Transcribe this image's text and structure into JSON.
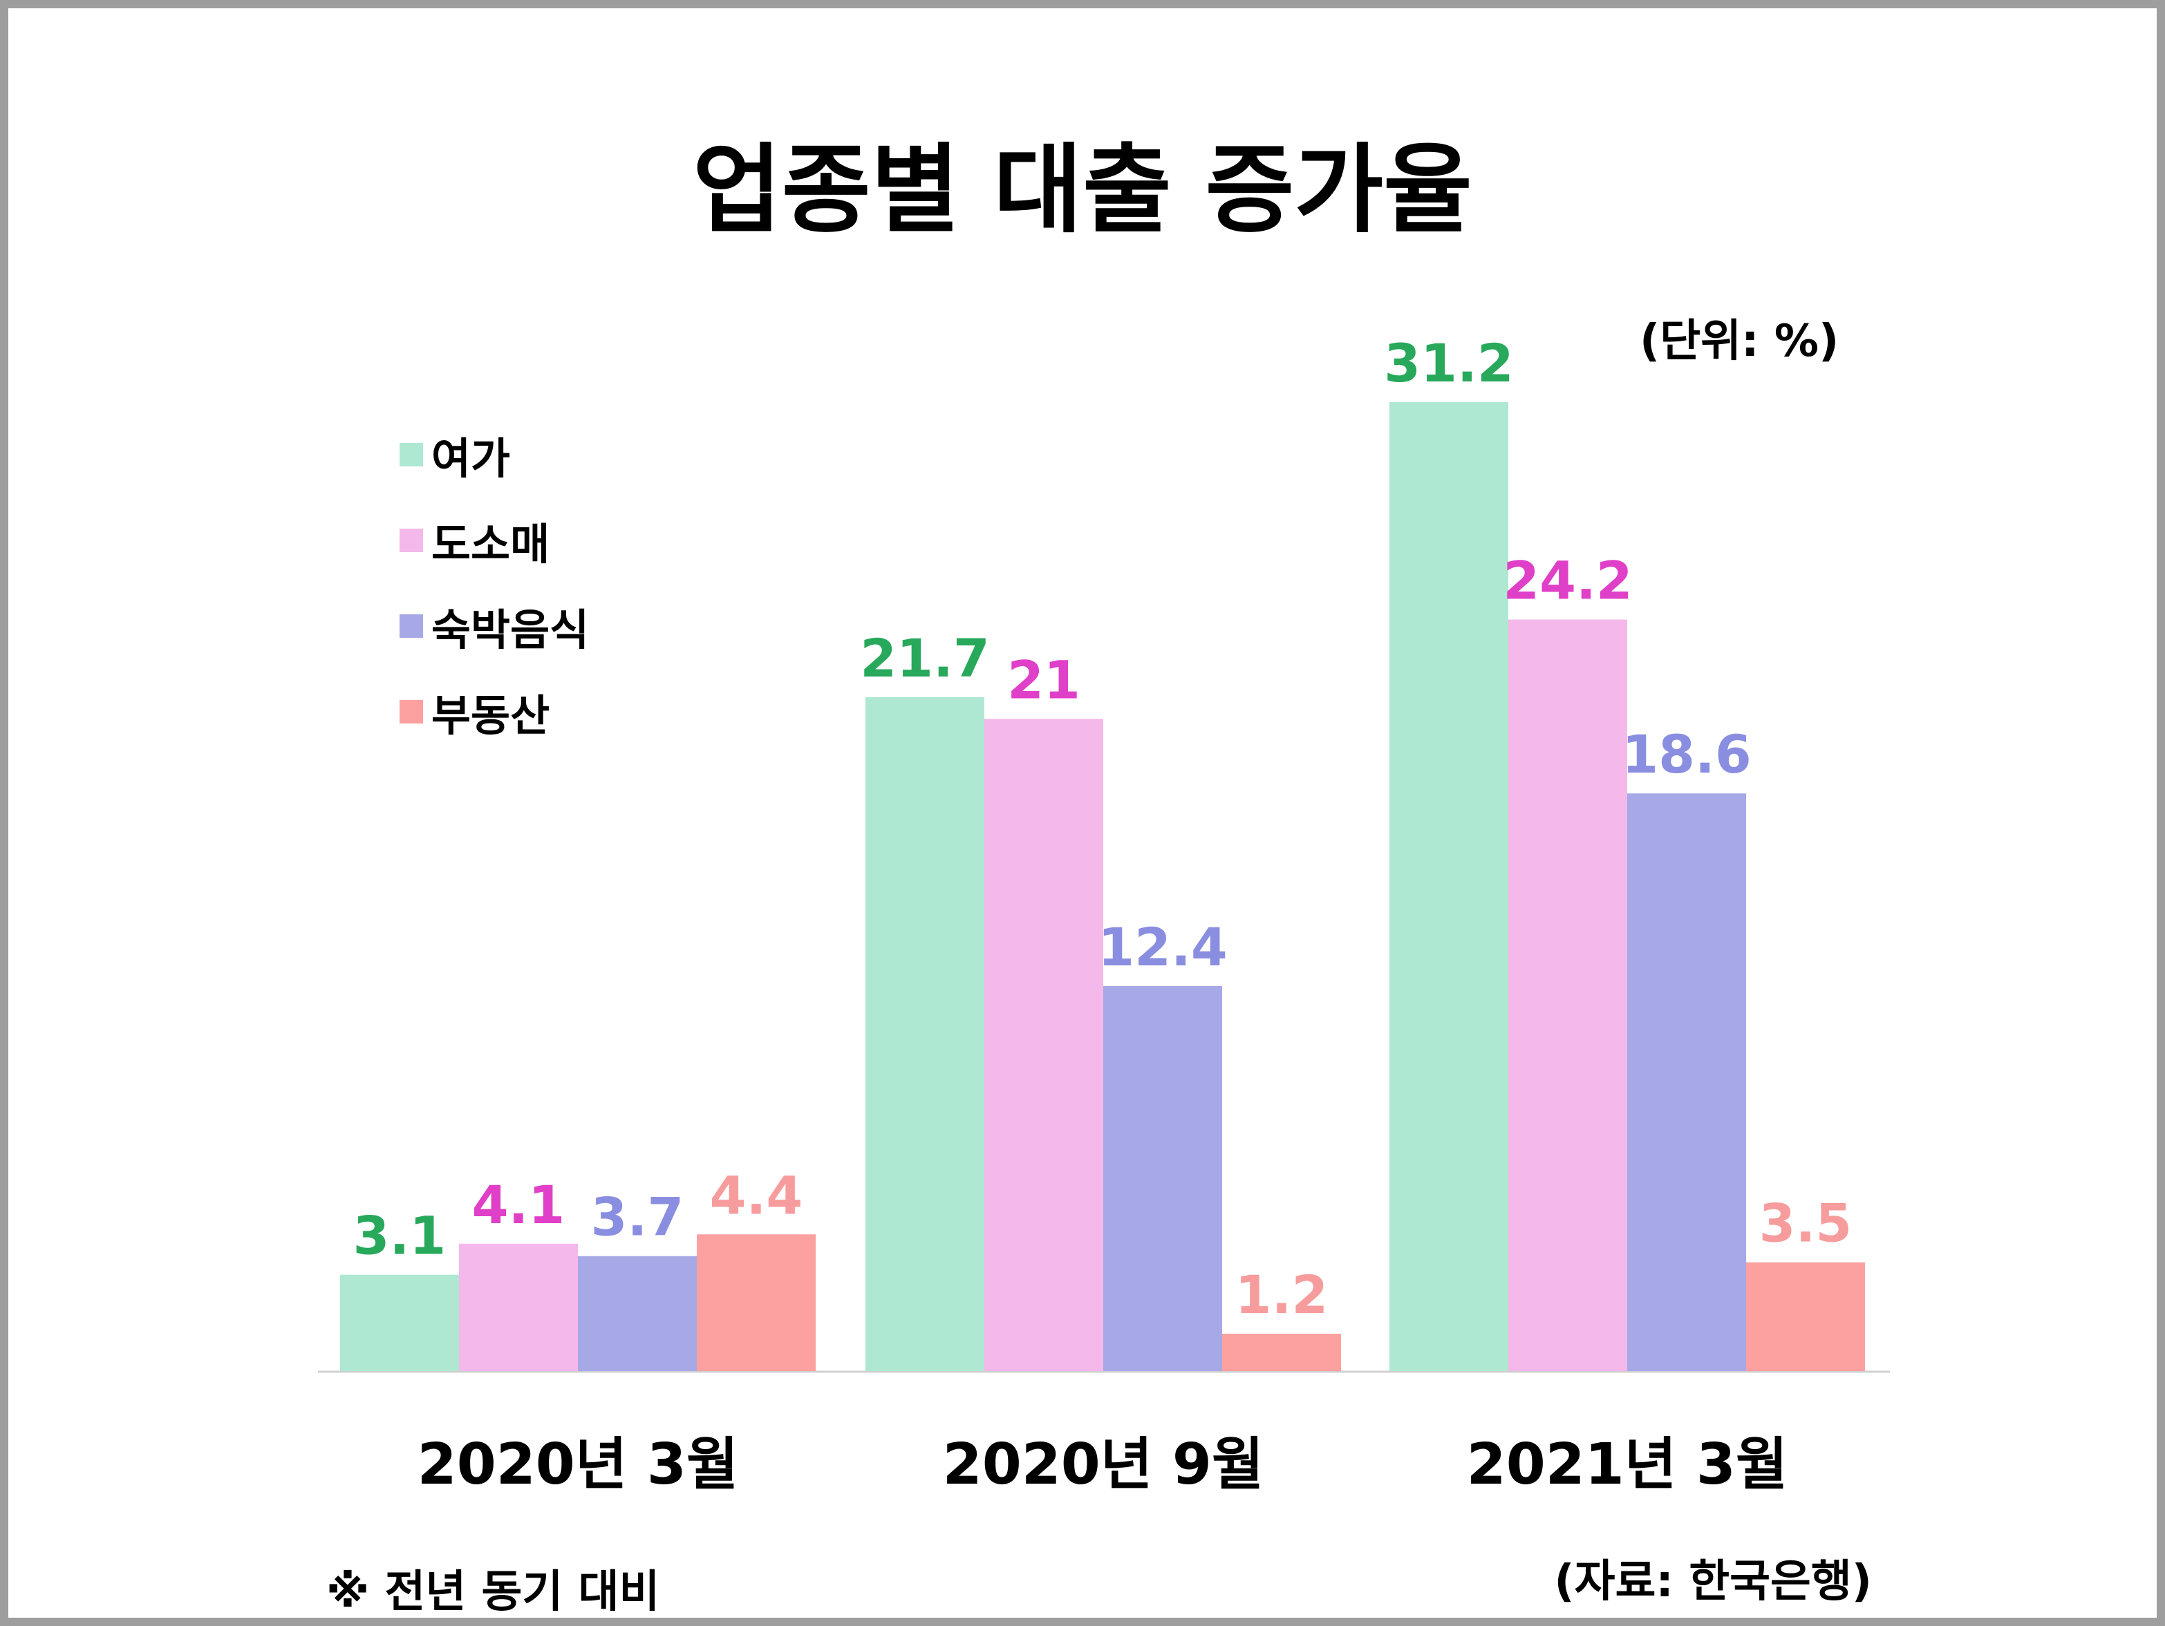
{
  "title": "업종별 대출 증가율",
  "unit_label": "(단위: %)",
  "note": "※ 전년 동기 대비",
  "source": "(자료: 한국은행)",
  "chart_data": {
    "type": "bar",
    "title": "업종별 대출 증가율",
    "unit": "%",
    "categories": [
      "2020년 3월",
      "2020년 9월",
      "2021년 3월"
    ],
    "series": [
      {
        "name": "여가",
        "values": [
          3.1,
          21.7,
          31.2
        ],
        "color": "#aee8d2",
        "label_color": "#27a85b"
      },
      {
        "name": "도소매",
        "values": [
          4.1,
          21,
          24.2
        ],
        "color": "#f4b8ea",
        "label_color": "#e03fc8"
      },
      {
        "name": "숙박음식",
        "values": [
          3.7,
          12.4,
          18.6
        ],
        "color": "#a7a8e6",
        "label_color": "#8a8ee0"
      },
      {
        "name": "부동산",
        "values": [
          4.4,
          1.2,
          3.5
        ],
        "color": "#fda0a0",
        "label_color": "#f79c9c"
      }
    ],
    "value_labels": [
      [
        "3.1",
        "21.7",
        "31.2"
      ],
      [
        "4.1",
        "21",
        "24.2"
      ],
      [
        "3.7",
        "12.4",
        "18.6"
      ],
      [
        "4.4",
        "1.2",
        "3.5"
      ]
    ],
    "ylim": [
      0,
      31.2
    ],
    "grid": false,
    "legend_position": "top-left"
  }
}
